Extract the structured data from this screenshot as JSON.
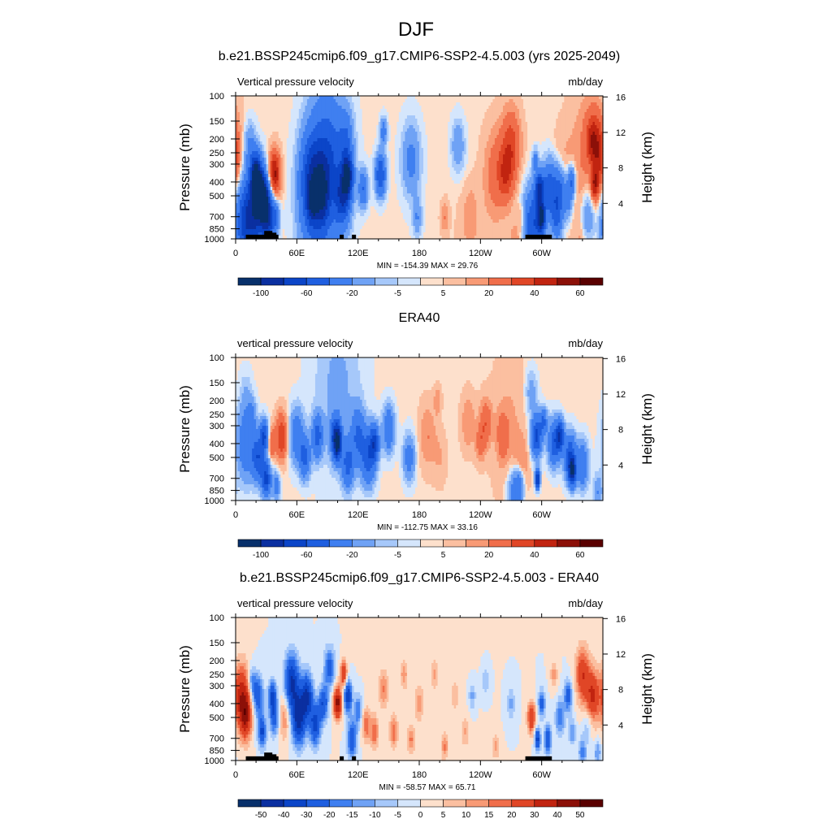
{
  "figure_title": "DJF",
  "colors": {
    "diverging": [
      "#08306b",
      "#0a2fa0",
      "#0b45c8",
      "#1f5fe0",
      "#3f7ff0",
      "#6fa2f5",
      "#a6c8fa",
      "#d5e6fc",
      "#fde0cc",
      "#fbbfa0",
      "#f89a75",
      "#f06e4b",
      "#e04626",
      "#c12410",
      "#8c1008",
      "#5a0000"
    ]
  },
  "panels": [
    {
      "title": "b.e21.BSSP245cmip6.f09_g17.CMIP6-SSP2-4.5.003 (yrs 2025-2049)",
      "left_label": "Vertical pressure velocity",
      "right_label": "mb/day",
      "stats": "MIN = -154.39  MAX =  29.76",
      "colorbar": {
        "labels": [
          "-100",
          "-60",
          "-20",
          "-5",
          "5",
          "20",
          "40",
          "60"
        ],
        "label_slots": [
          1,
          3,
          5,
          7,
          9,
          11,
          13,
          15
        ]
      },
      "topo": true,
      "blobs": [
        [
          8,
          90,
          0.9,
          -45
        ],
        [
          14,
          85,
          0.9,
          -35
        ],
        [
          14,
          35,
          0.5,
          -22
        ],
        [
          22,
          75,
          0.8,
          -70
        ],
        [
          20,
          55,
          0.45,
          -85
        ],
        [
          26,
          70,
          0.45,
          -95
        ],
        [
          32,
          85,
          0.55,
          -80
        ],
        [
          38,
          55,
          0.5,
          45
        ],
        [
          40,
          85,
          0.3,
          -30
        ],
        [
          75,
          60,
          1.0,
          -60
        ],
        [
          90,
          45,
          1.6,
          -45
        ],
        [
          90,
          45,
          0.8,
          -15
        ],
        [
          80,
          85,
          1.5,
          -25
        ],
        [
          75,
          75,
          0.4,
          -40
        ],
        [
          85,
          70,
          0.6,
          -40
        ],
        [
          105,
          70,
          0.65,
          -65
        ],
        [
          110,
          55,
          0.45,
          -85
        ],
        [
          108,
          30,
          0.6,
          -30
        ],
        [
          125,
          65,
          0.4,
          -40
        ],
        [
          142,
          55,
          0.45,
          -60
        ],
        [
          145,
          25,
          0.3,
          -30
        ],
        [
          172,
          45,
          0.8,
          -25
        ],
        [
          178,
          85,
          0.4,
          -20
        ],
        [
          205,
          85,
          0.35,
          10
        ],
        [
          230,
          100,
          1.1,
          5
        ],
        [
          230,
          80,
          0.5,
          6
        ],
        [
          255,
          55,
          1.0,
          15
        ],
        [
          265,
          55,
          0.6,
          20
        ],
        [
          270,
          35,
          0.8,
          25
        ],
        [
          275,
          105,
          0.6,
          10
        ],
        [
          218,
          35,
          0.55,
          -20
        ],
        [
          280,
          85,
          0.3,
          10
        ],
        [
          292,
          90,
          0.8,
          -60
        ],
        [
          294,
          45,
          0.25,
          -25
        ],
        [
          298,
          65,
          0.35,
          -80
        ],
        [
          300,
          85,
          0.3,
          -100
        ],
        [
          308,
          65,
          0.6,
          -55
        ],
        [
          315,
          85,
          0.5,
          -45
        ],
        [
          318,
          65,
          0.5,
          -45
        ],
        [
          326,
          75,
          0.4,
          -25
        ],
        [
          329,
          60,
          0.35,
          -45
        ],
        [
          345,
          85,
          0.55,
          -25
        ],
        [
          350,
          55,
          0.55,
          -18
        ],
        [
          320,
          60,
          0.9,
          8
        ],
        [
          345,
          45,
          1.6,
          10
        ],
        [
          355,
          45,
          0.8,
          30
        ],
        [
          352,
          62,
          0.35,
          35
        ],
        [
          350,
          30,
          0.6,
          22
        ],
        [
          340,
          100,
          0.6,
          6
        ]
      ]
    },
    {
      "title": "ERA40",
      "left_label": "vertical pressure velocity",
      "right_label": "mb/day",
      "stats": "MIN = -112.75  MAX =  33.16",
      "colorbar": {
        "labels": [
          "-100",
          "-60",
          "-20",
          "-5",
          "5",
          "20",
          "40",
          "60"
        ],
        "label_slots": [
          1,
          3,
          5,
          7,
          9,
          11,
          13,
          15
        ]
      },
      "topo": false,
      "blobs": [
        [
          10,
          60,
          0.8,
          -35
        ],
        [
          16,
          40,
          0.35,
          -18
        ],
        [
          22,
          70,
          0.5,
          -55
        ],
        [
          28,
          55,
          0.35,
          -60
        ],
        [
          30,
          85,
          0.4,
          -65
        ],
        [
          35,
          60,
          0.35,
          20
        ],
        [
          45,
          55,
          0.5,
          30
        ],
        [
          40,
          90,
          0.3,
          -30
        ],
        [
          60,
          55,
          0.6,
          -35
        ],
        [
          68,
          70,
          0.45,
          -45
        ],
        [
          80,
          55,
          0.45,
          -50
        ],
        [
          98,
          55,
          0.45,
          -55
        ],
        [
          100,
          60,
          0.35,
          -80
        ],
        [
          110,
          75,
          0.5,
          -45
        ],
        [
          120,
          55,
          0.6,
          -40
        ],
        [
          130,
          70,
          0.6,
          -50
        ],
        [
          136,
          60,
          0.4,
          -60
        ],
        [
          150,
          50,
          0.5,
          -40
        ],
        [
          100,
          20,
          2.0,
          -12
        ],
        [
          170,
          70,
          0.5,
          -30
        ],
        [
          188,
          55,
          0.7,
          10
        ],
        [
          198,
          30,
          0.3,
          10
        ],
        [
          200,
          70,
          0.6,
          5
        ],
        [
          228,
          45,
          0.6,
          10
        ],
        [
          240,
          60,
          0.4,
          15
        ],
        [
          245,
          45,
          0.5,
          18
        ],
        [
          262,
          55,
          0.5,
          15
        ],
        [
          280,
          75,
          0.55,
          10
        ],
        [
          268,
          50,
          1.5,
          6
        ],
        [
          290,
          25,
          0.5,
          -15
        ],
        [
          272,
          95,
          0.5,
          -25
        ],
        [
          278,
          90,
          0.4,
          -35
        ],
        [
          295,
          55,
          0.45,
          -65
        ],
        [
          296,
          85,
          0.2,
          -90
        ],
        [
          302,
          45,
          0.3,
          -40
        ],
        [
          312,
          60,
          0.5,
          -50
        ],
        [
          318,
          55,
          0.35,
          -70
        ],
        [
          328,
          70,
          0.5,
          -60
        ],
        [
          330,
          80,
          0.3,
          -80
        ],
        [
          340,
          75,
          0.5,
          -40
        ],
        [
          10,
          25,
          0.5,
          -8
        ],
        [
          355,
          95,
          0.4,
          -20
        ]
      ]
    },
    {
      "title": "b.e21.BSSP245cmip6.f09_g17.CMIP6-SSP2-4.5.003 - ERA40",
      "left_label": "vertical pressure velocity",
      "right_label": "mb/day",
      "stats": "MIN = -58.57  MAX =  65.71",
      "colorbar": {
        "labels": [
          "-50",
          "-40",
          "-30",
          "-20",
          "-15",
          "-10",
          "-5",
          "0",
          "5",
          "10",
          "15",
          "20",
          "30",
          "40",
          "50"
        ],
        "label_slots": [
          1,
          2,
          3,
          4,
          5,
          6,
          7,
          8,
          9,
          10,
          11,
          12,
          13,
          14,
          15
        ]
      },
      "topo": true,
      "blobs": [
        [
          6,
          55,
          0.7,
          35
        ],
        [
          10,
          70,
          0.5,
          30
        ],
        [
          16,
          45,
          0.35,
          -18
        ],
        [
          22,
          55,
          0.45,
          -28
        ],
        [
          26,
          80,
          0.35,
          -32
        ],
        [
          36,
          55,
          0.35,
          -30
        ],
        [
          38,
          70,
          0.4,
          -25
        ],
        [
          48,
          70,
          0.5,
          15
        ],
        [
          55,
          45,
          0.6,
          -40
        ],
        [
          62,
          70,
          0.6,
          -45
        ],
        [
          70,
          55,
          0.5,
          -38
        ],
        [
          78,
          75,
          0.45,
          -35
        ],
        [
          86,
          60,
          0.4,
          -30
        ],
        [
          92,
          35,
          0.45,
          -25
        ],
        [
          100,
          60,
          0.35,
          45
        ],
        [
          106,
          40,
          0.3,
          30
        ],
        [
          110,
          55,
          0.35,
          -38
        ],
        [
          114,
          85,
          0.4,
          -30
        ],
        [
          120,
          65,
          0.35,
          -20
        ],
        [
          128,
          75,
          0.35,
          20
        ],
        [
          136,
          80,
          0.35,
          20
        ],
        [
          145,
          50,
          0.4,
          15
        ],
        [
          155,
          80,
          0.35,
          18
        ],
        [
          165,
          40,
          0.3,
          12
        ],
        [
          172,
          85,
          0.3,
          15
        ],
        [
          180,
          60,
          0.35,
          12
        ],
        [
          195,
          40,
          0.3,
          10
        ],
        [
          205,
          90,
          0.3,
          15
        ],
        [
          215,
          55,
          0.35,
          8
        ],
        [
          225,
          80,
          0.35,
          10
        ],
        [
          232,
          55,
          0.3,
          -12
        ],
        [
          245,
          45,
          0.3,
          -10
        ],
        [
          255,
          90,
          0.3,
          12
        ],
        [
          270,
          60,
          0.35,
          -12
        ],
        [
          290,
          70,
          0.35,
          30
        ],
        [
          296,
          85,
          0.25,
          -35
        ],
        [
          300,
          60,
          0.3,
          -25
        ],
        [
          306,
          85,
          0.3,
          -30
        ],
        [
          312,
          40,
          0.3,
          12
        ],
        [
          318,
          70,
          0.4,
          -20
        ],
        [
          326,
          55,
          0.35,
          -25
        ],
        [
          330,
          80,
          0.3,
          -15
        ],
        [
          340,
          40,
          0.6,
          28
        ],
        [
          350,
          55,
          0.6,
          30
        ],
        [
          345,
          75,
          0.4,
          -10
        ],
        [
          355,
          95,
          0.3,
          -15
        ],
        [
          340,
          95,
          0.35,
          -18
        ],
        [
          180,
          30,
          3.0,
          2
        ]
      ]
    }
  ],
  "axes": {
    "pressure_ticks": [
      "100",
      "150",
      "200",
      "250",
      "300",
      "400",
      "500",
      "700",
      "850",
      "1000"
    ],
    "lon_ticks": [
      "0",
      "60E",
      "120E",
      "180",
      "120W",
      "60W"
    ],
    "height_ticks": [
      "16",
      "12",
      "8",
      "4"
    ],
    "ylabel": "Pressure (mb)",
    "ylabel_right": "Height (km)"
  },
  "chart_data": [
    {
      "type": "heatmap",
      "title": "b.e21.BSSP245cmip6.f09_g17.CMIP6-SSP2-4.5.003 (yrs 2025-2049)",
      "left_subtitle": "Vertical pressure velocity",
      "units": "mb/day",
      "xlabel": "",
      "ylabel": "Pressure (mb)",
      "ylabel_right": "Height (km)",
      "x_range": [
        0,
        360
      ],
      "y_range": [
        1000,
        100
      ],
      "y_scale": "log",
      "min": -154.39,
      "max": 29.76,
      "colorbar_levels": [
        -100,
        -80,
        -60,
        -40,
        -20,
        -10,
        -5,
        -1,
        1,
        5,
        10,
        20,
        30,
        40,
        50,
        60,
        70
      ]
    },
    {
      "type": "heatmap",
      "title": "ERA40",
      "left_subtitle": "vertical pressure velocity",
      "units": "mb/day",
      "xlabel": "",
      "ylabel": "Pressure (mb)",
      "ylabel_right": "Height (km)",
      "x_range": [
        0,
        360
      ],
      "y_range": [
        1000,
        100
      ],
      "y_scale": "log",
      "min": -112.75,
      "max": 33.16,
      "colorbar_levels": [
        -100,
        -80,
        -60,
        -40,
        -20,
        -10,
        -5,
        -1,
        1,
        5,
        10,
        20,
        30,
        40,
        50,
        60,
        70
      ]
    },
    {
      "type": "heatmap",
      "title": "b.e21.BSSP245cmip6.f09_g17.CMIP6-SSP2-4.5.003 - ERA40",
      "left_subtitle": "vertical pressure velocity",
      "units": "mb/day",
      "xlabel": "",
      "ylabel": "Pressure (mb)",
      "ylabel_right": "Height (km)",
      "x_range": [
        0,
        360
      ],
      "y_range": [
        1000,
        100
      ],
      "y_scale": "log",
      "min": -58.57,
      "max": 65.71,
      "colorbar_levels": [
        -50,
        -40,
        -30,
        -20,
        -15,
        -10,
        -5,
        0,
        5,
        10,
        15,
        20,
        30,
        40,
        50
      ]
    }
  ]
}
